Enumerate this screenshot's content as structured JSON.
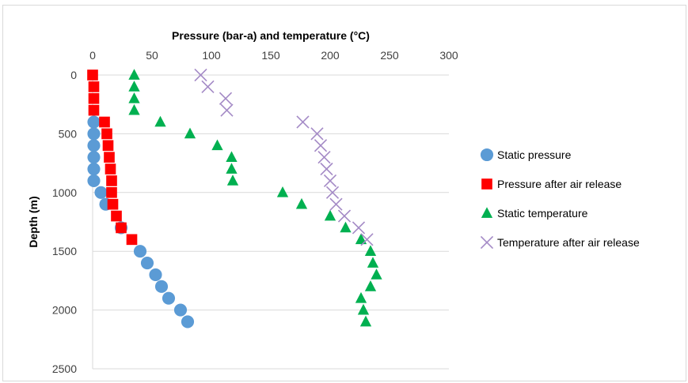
{
  "chart_data": {
    "type": "scatter",
    "title": "",
    "xlabel": "Pressure (bar-a) and temperature (°C)",
    "ylabel": "Depth (m)",
    "xlim": [
      0,
      300
    ],
    "ylim": [
      0,
      2500
    ],
    "y_reversed": true,
    "x_axis_position": "top",
    "x_ticks": [
      "0",
      "50",
      "100",
      "150",
      "200",
      "250",
      "300"
    ],
    "y_ticks": [
      "0",
      "500",
      "1000",
      "1500",
      "2000",
      "2500"
    ],
    "grid": "horizontal",
    "legend_position": "right",
    "series": [
      {
        "name": "Static pressure",
        "marker": "circle",
        "color": "#5b9bd5",
        "points": [
          [
            1,
            400
          ],
          [
            1,
            500
          ],
          [
            1,
            600
          ],
          [
            1,
            700
          ],
          [
            1,
            800
          ],
          [
            1,
            900
          ],
          [
            7,
            1000
          ],
          [
            11,
            1100
          ],
          [
            24,
            1300
          ],
          [
            40,
            1500
          ],
          [
            46,
            1600
          ],
          [
            53,
            1700
          ],
          [
            58,
            1800
          ],
          [
            64,
            1900
          ],
          [
            74,
            2000
          ],
          [
            80,
            2100
          ]
        ]
      },
      {
        "name": "Pressure after air release",
        "marker": "square",
        "color": "#ff0000",
        "points": [
          [
            0,
            0
          ],
          [
            1,
            100
          ],
          [
            1,
            200
          ],
          [
            1,
            300
          ],
          [
            10,
            400
          ],
          [
            12,
            500
          ],
          [
            13,
            600
          ],
          [
            14,
            700
          ],
          [
            15,
            800
          ],
          [
            16,
            900
          ],
          [
            16,
            1000
          ],
          [
            17,
            1100
          ],
          [
            20,
            1200
          ],
          [
            24,
            1300
          ],
          [
            33,
            1400
          ]
        ]
      },
      {
        "name": "Static temperature",
        "marker": "triangle",
        "color": "#00b050",
        "points": [
          [
            35,
            0
          ],
          [
            35,
            100
          ],
          [
            35,
            200
          ],
          [
            35,
            300
          ],
          [
            57,
            400
          ],
          [
            82,
            500
          ],
          [
            105,
            600
          ],
          [
            117,
            700
          ],
          [
            117,
            800
          ],
          [
            118,
            900
          ],
          [
            160,
            1000
          ],
          [
            176,
            1100
          ],
          [
            200,
            1200
          ],
          [
            213,
            1300
          ],
          [
            226,
            1400
          ],
          [
            234,
            1500
          ],
          [
            236,
            1600
          ],
          [
            239,
            1700
          ],
          [
            234,
            1800
          ],
          [
            226,
            1900
          ],
          [
            228,
            2000
          ],
          [
            230,
            2100
          ]
        ]
      },
      {
        "name": "Temperature after air release",
        "marker": "x",
        "color": "#a48ac6",
        "points": [
          [
            91,
            0
          ],
          [
            97,
            100
          ],
          [
            112,
            200
          ],
          [
            113,
            300
          ],
          [
            177,
            400
          ],
          [
            189,
            500
          ],
          [
            192,
            600
          ],
          [
            195,
            700
          ],
          [
            197,
            800
          ],
          [
            200,
            900
          ],
          [
            202,
            1000
          ],
          [
            205,
            1100
          ],
          [
            212,
            1200
          ],
          [
            224,
            1300
          ],
          [
            231,
            1400
          ]
        ]
      }
    ]
  }
}
